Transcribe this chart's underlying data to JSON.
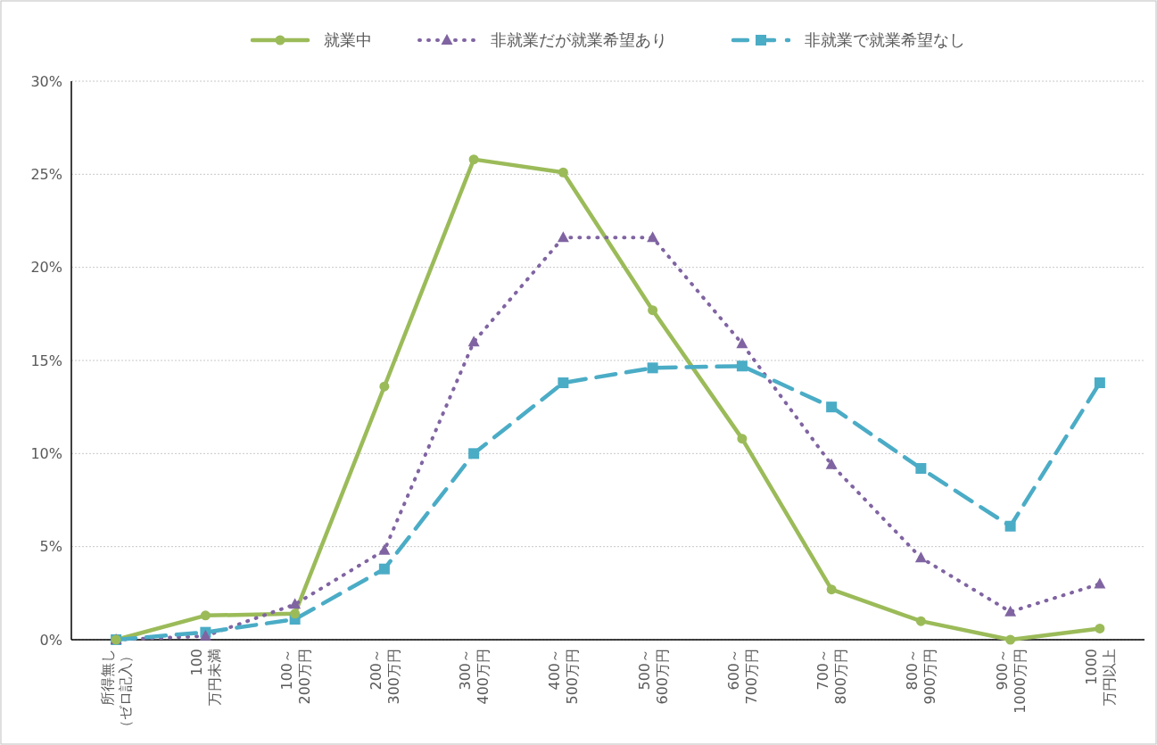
{
  "chart_data": {
    "type": "line",
    "categories": [
      "所得無し（ゼロ記入）",
      "100\n万円未満",
      "100～\n200万円",
      "200～\n300万円",
      "300～\n400万円",
      "400～\n500万円",
      "500～\n600万円",
      "600～\n700万円",
      "700～\n800万円",
      "800～\n900万円",
      "900～\n1000万円",
      "1000\n万円以上"
    ],
    "series": [
      {
        "name": "就業中",
        "color": "#9bbb59",
        "marker": "circle",
        "line_style": "solid",
        "values": [
          0,
          1.3,
          1.4,
          13.6,
          25.8,
          25.1,
          17.7,
          10.8,
          2.7,
          1.0,
          0,
          0.6
        ]
      },
      {
        "name": "非就業だが就業希望あり",
        "color": "#8064a2",
        "marker": "triangle",
        "line_style": "dotted",
        "values": [
          0,
          0.2,
          1.9,
          4.8,
          16.0,
          21.6,
          21.6,
          15.9,
          9.4,
          4.4,
          1.5,
          3.0
        ]
      },
      {
        "name": "非就業で就業希望なし",
        "color": "#4bacc6",
        "marker": "square",
        "line_style": "dashed",
        "values": [
          0,
          0.4,
          1.1,
          3.8,
          10.0,
          13.8,
          14.6,
          14.7,
          12.5,
          9.2,
          6.1,
          13.8
        ]
      }
    ],
    "ylim": [
      0,
      30
    ],
    "yticks": [
      {
        "value": 0,
        "label": "0%"
      },
      {
        "value": 5,
        "label": "5%"
      },
      {
        "value": 10,
        "label": "10%"
      },
      {
        "value": 15,
        "label": "15%"
      },
      {
        "value": 20,
        "label": "20%"
      },
      {
        "value": 25,
        "label": "25%"
      },
      {
        "value": 30,
        "label": "30%"
      }
    ],
    "grid": "y",
    "legend": "top"
  }
}
